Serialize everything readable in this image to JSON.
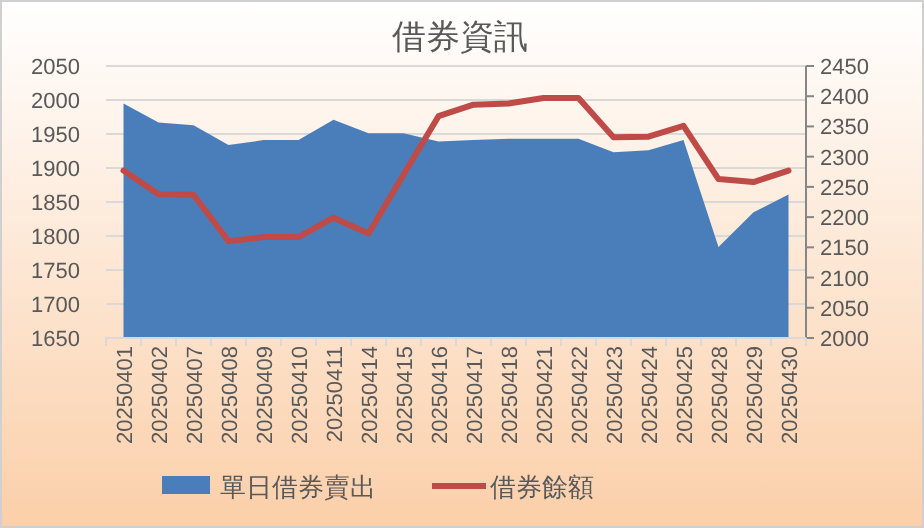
{
  "chart_data": {
    "type": "area",
    "title": "借券資訊",
    "categories": [
      "20250401",
      "20250402",
      "20250407",
      "20250408",
      "20250409",
      "20250410",
      "20250411",
      "20250414",
      "20250415",
      "20250416",
      "20250417",
      "20250418",
      "20250421",
      "20250422",
      "20250423",
      "20250424",
      "20250425",
      "20250428",
      "20250429",
      "20250430"
    ],
    "series": [
      {
        "name": "單日借券賣出",
        "color": "#4a7ebb",
        "values": [
          1995,
          1967,
          1963,
          1934,
          1941,
          1941,
          1971,
          1951,
          1951,
          1939,
          1941,
          1943,
          1943,
          1943,
          1923,
          1926,
          1941,
          1784,
          1835,
          1861
        ]
      },
      {
        "name": "借券餘額",
        "type": "line",
        "axis": "y2",
        "color": "#be4b48",
        "values": [
          2277,
          2238,
          2237,
          2160,
          2167,
          2167,
          2199,
          2173,
          2270,
          2367,
          2386,
          2388,
          2397,
          2397,
          2332,
          2333,
          2351,
          2263,
          2258,
          2277
        ]
      }
    ],
    "ylim": [
      1650,
      2050
    ],
    "yticks": [
      1650,
      1700,
      1750,
      1800,
      1850,
      1900,
      1950,
      2000,
      2050
    ],
    "y2lim": [
      2000,
      2450
    ],
    "y2ticks": [
      2000,
      2050,
      2100,
      2150,
      2200,
      2250,
      2300,
      2350,
      2400,
      2450
    ],
    "grid": "y",
    "legend": "bottom"
  }
}
